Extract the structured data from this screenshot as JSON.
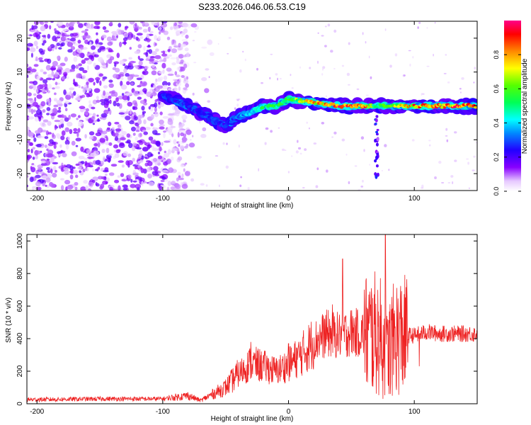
{
  "title": "S233.2026.046.06.53.C19",
  "colors": {
    "snr_line": "#ee2222",
    "axis": "#000000"
  },
  "chart_data": [
    {
      "type": "heatmap",
      "title": "S233.2026.046.06.53.C19",
      "xlabel": "Height of straight line (km)",
      "ylabel": "Frequency (Hz)",
      "xlim": [
        -208,
        150
      ],
      "ylim": [
        -25,
        25
      ],
      "xticks": [
        -200,
        -100,
        0,
        100
      ],
      "yticks": [
        -20,
        -10,
        0,
        10,
        20
      ],
      "colorbar": {
        "label": "Normalized spectral amplitude",
        "range": [
          0,
          1
        ],
        "ticks": [
          "0.0",
          "0.2",
          "0.4",
          "0.6",
          "0.8"
        ],
        "colormap": "rainbow (white-violet-blue-cyan-green-yellow-orange-red-magenta)"
      },
      "ridge": {
        "description": "strong narrow band near 0 Hz from about -100 km to 150 km; noisy scatter below -90 km",
        "x": [
          -100,
          -80,
          -60,
          -50,
          -40,
          -30,
          -20,
          -10,
          0,
          20,
          40,
          60,
          70,
          80,
          100,
          120,
          150
        ],
        "freq": [
          3,
          0,
          -4,
          -6,
          -3,
          -2,
          0,
          0,
          2,
          1,
          0,
          0,
          0,
          0,
          0,
          0,
          0
        ],
        "amplitude": [
          0.3,
          0.3,
          0.3,
          0.3,
          0.35,
          0.45,
          0.55,
          0.6,
          0.6,
          0.85,
          0.95,
          0.95,
          0.5,
          0.7,
          0.9,
          0.95,
          0.9
        ]
      }
    },
    {
      "type": "line",
      "xlabel": "Height of straight line (km)",
      "ylabel": "SNR (10 * v/v)",
      "xlim": [
        -208,
        150
      ],
      "ylim": [
        0,
        1040
      ],
      "xticks": [
        -200,
        -100,
        0,
        100
      ],
      "yticks": [
        0,
        200,
        400,
        600,
        800,
        1000
      ],
      "series": [
        {
          "name": "SNR",
          "envelope_x": [
            -208,
            -150,
            -100,
            -80,
            -70,
            -60,
            -50,
            -40,
            -30,
            -20,
            -10,
            0,
            10,
            20,
            30,
            40,
            50,
            60,
            70,
            75,
            78,
            80,
            85,
            90,
            100,
            110,
            120,
            150
          ],
          "envelope_y": [
            25,
            30,
            30,
            50,
            20,
            60,
            100,
            180,
            250,
            230,
            200,
            240,
            300,
            380,
            430,
            420,
            440,
            430,
            430,
            400,
            300,
            350,
            410,
            420,
            420,
            440,
            430,
            430
          ],
          "peaks": [
            {
              "x": -30,
              "y": 380
            },
            {
              "x": 0,
              "y": 370
            },
            {
              "x": 35,
              "y": 610
            },
            {
              "x": 43,
              "y": 890
            },
            {
              "x": 77,
              "y": 1040
            },
            {
              "x": 104,
              "y": 730
            }
          ],
          "dips": [
            {
              "x": 75,
              "y": 30
            },
            {
              "x": 81,
              "y": 60
            },
            {
              "x": 104,
              "y": 230
            }
          ]
        }
      ]
    }
  ]
}
